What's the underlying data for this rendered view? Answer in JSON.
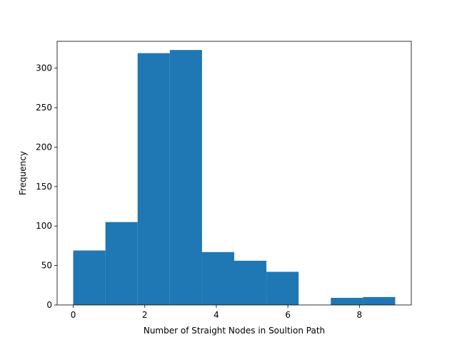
{
  "chart_data": {
    "type": "bar",
    "title": "",
    "xlabel": "Number of Straight Nodes in Soultion Path",
    "ylabel": "Frequency",
    "xlim": [
      -0.45,
      9.45
    ],
    "ylim": [
      0,
      334
    ],
    "bin_edges": [
      0,
      0.9,
      1.8,
      2.7,
      3.6,
      4.5,
      5.4,
      6.3,
      7.2,
      8.1,
      9.0
    ],
    "values": [
      69,
      105,
      319,
      323,
      67,
      56,
      42,
      0,
      9,
      10
    ],
    "xticks": [
      0,
      2,
      4,
      6,
      8
    ],
    "yticks": [
      0,
      50,
      100,
      150,
      200,
      250,
      300
    ],
    "bar_color": "#1f77b4",
    "grid": false,
    "legend": "none"
  }
}
